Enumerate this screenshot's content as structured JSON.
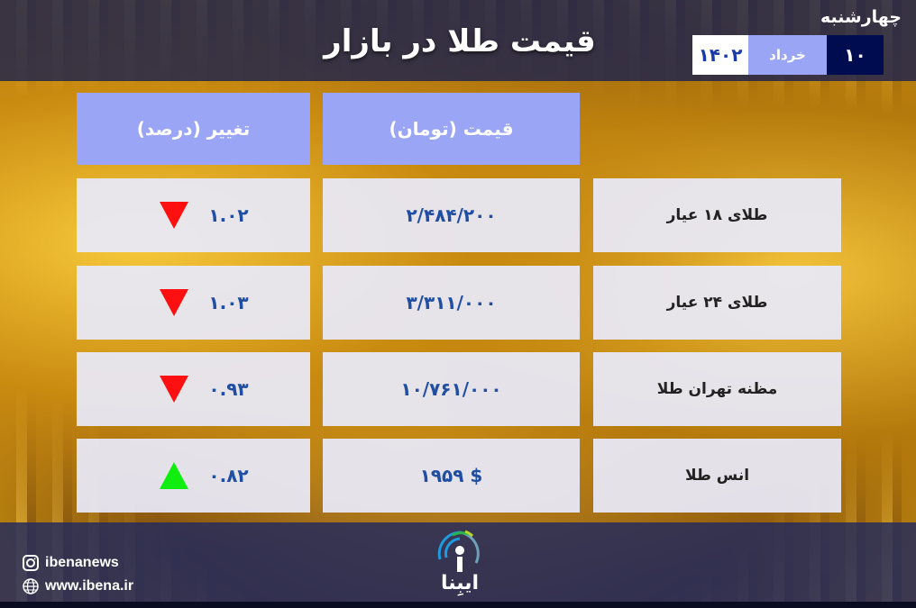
{
  "header": {
    "title": "قیمت طلا در بازار",
    "weekday": "چهارشنبه",
    "date": {
      "day": "۱۰",
      "month": "خرداد",
      "year": "۱۴۰۲"
    }
  },
  "table": {
    "columns": [
      "تغییر (درصد)",
      "قیمت (تومان)"
    ],
    "rows": [
      {
        "label": "طلای ۱۸ عیار",
        "price": "۲/۴۸۴/۲۰۰",
        "change": "۱.۰۲",
        "direction": "down"
      },
      {
        "label": "طلای ۲۴ عیار",
        "price": "۳/۳۱۱/۰۰۰",
        "change": "۱.۰۳",
        "direction": "down"
      },
      {
        "label": "مظنه تهران طلا",
        "price": "۱۰/۷۶۱/۰۰۰",
        "change": "۰.۹۳",
        "direction": "down"
      },
      {
        "label": "انس طلا",
        "price": "$ ۱۹۵۹",
        "change": "۰.۸۲",
        "direction": "up"
      }
    ]
  },
  "footer": {
    "instagram": "ibenanews",
    "website": "www.ibena.ir",
    "logo_text": "ایبِنا"
  },
  "colors": {
    "up": "#10ee10",
    "down": "#ff1010",
    "header_cell": "#9aa6f5",
    "navy": "#000c50",
    "value_text": "#1f4ea3"
  }
}
